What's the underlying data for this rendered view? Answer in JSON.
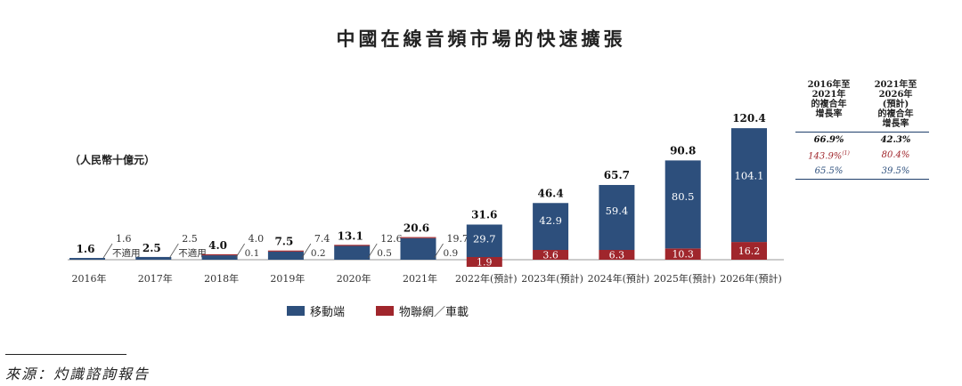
{
  "title": "中國在線音頻市場的快速擴張",
  "unit": "（人民幣十億元）",
  "source": "來源：灼識諮詢報告",
  "colors": {
    "mobile": "#2d4f7c",
    "iot": "#a0262c"
  },
  "legend": {
    "mobile": "移動端",
    "iot": "物聯網／車載"
  },
  "cagr_table": {
    "header_left": [
      "2016年至",
      "2021年",
      "的複合年",
      "增長率"
    ],
    "header_right": [
      "2021年至",
      "2026年",
      "(預計)",
      "的複合年",
      "增長率"
    ],
    "rows": [
      {
        "left": "66.9%",
        "right": "42.3%"
      },
      {
        "left": "143.9%",
        "left_note": "(1)",
        "right": "80.4%"
      },
      {
        "left": "65.5%",
        "right": "39.5%"
      }
    ]
  },
  "chart_data": {
    "type": "bar",
    "stacked": true,
    "title": "中國在線音頻市場的快速擴張",
    "ylabel": "（人民幣十億元）",
    "categories": [
      "2016年",
      "2017年",
      "2018年",
      "2019年",
      "2020年",
      "2021年",
      "2022年(預計)",
      "2023年(預計)",
      "2024年(預計)",
      "2025年(預計)",
      "2026年(預計)"
    ],
    "series": [
      {
        "name": "移動端",
        "values": [
          1.6,
          2.5,
          4.0,
          7.4,
          12.6,
          19.7,
          29.7,
          42.9,
          59.4,
          80.5,
          104.1
        ]
      },
      {
        "name": "物聯網／車載",
        "values": [
          0,
          0,
          0.1,
          0.2,
          0.5,
          0.9,
          1.9,
          3.6,
          6.3,
          10.3,
          16.2
        ],
        "labels": [
          "不適用",
          "不適用",
          "0.1",
          "0.2",
          "0.5",
          "0.9",
          "1.9",
          "3.6",
          "6.3",
          "10.3",
          "16.2"
        ]
      }
    ],
    "totals": [
      1.6,
      2.5,
      4.0,
      7.5,
      13.1,
      20.6,
      31.6,
      46.4,
      65.7,
      90.8,
      120.4
    ],
    "ylim": [
      0,
      120.4
    ]
  }
}
